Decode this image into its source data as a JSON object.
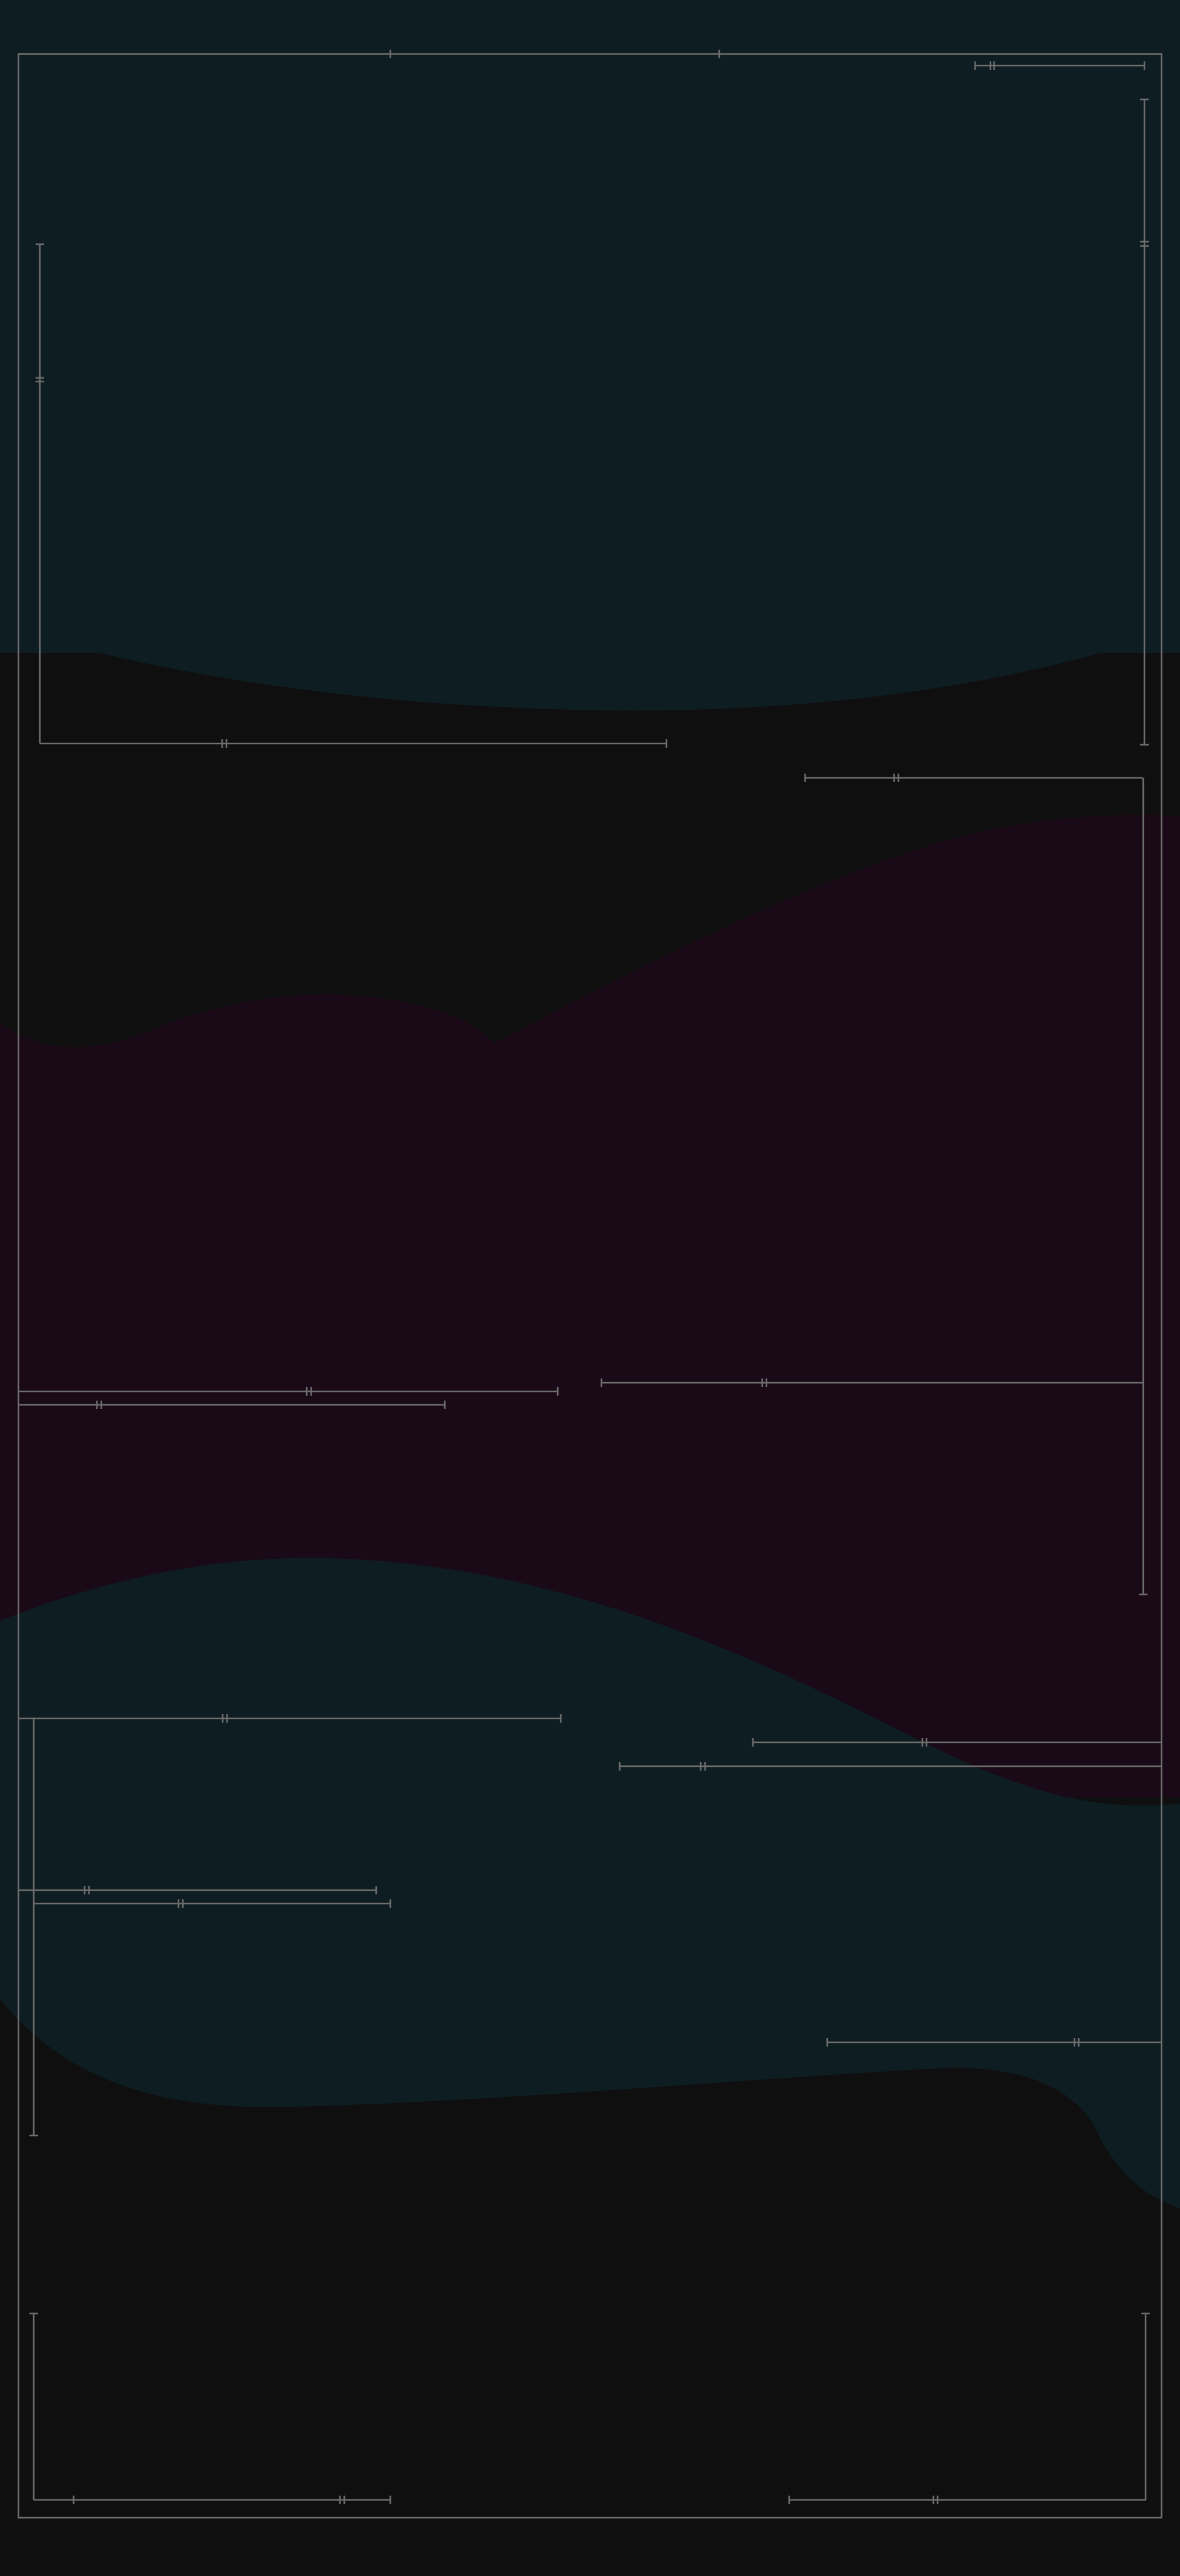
{
  "colors": {
    "background": "#0f0f10",
    "teal_band": "#0e1d21",
    "plum_band": "#1a0917",
    "frame_line": "#6d6d6d"
  }
}
